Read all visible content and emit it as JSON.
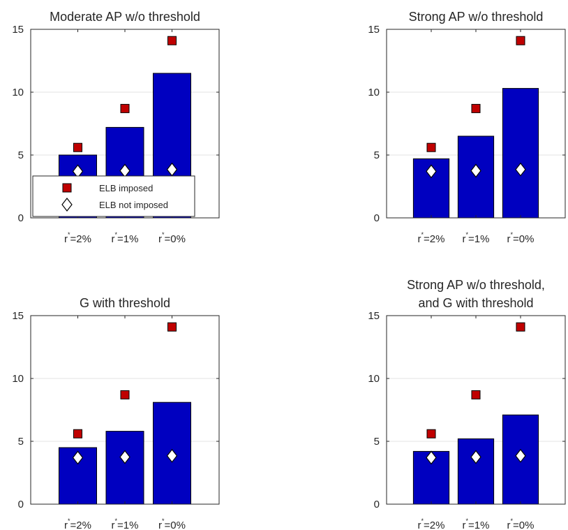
{
  "chart_data": [
    {
      "type": "bar",
      "title_lines": [
        "Moderate AP w/o threshold"
      ],
      "categories": [
        {
          "base": "r",
          "sup": "*",
          "rest": "=2%"
        },
        {
          "base": "r",
          "sup": "*",
          "rest": "=1%"
        },
        {
          "base": "r",
          "sup": "*",
          "rest": "=0%"
        }
      ],
      "values": [
        5.0,
        7.2,
        11.5
      ],
      "markers": [
        {
          "name": "ELB imposed",
          "shape": "square",
          "values": [
            5.6,
            8.7,
            14.1
          ]
        },
        {
          "name": "ELB not imposed",
          "shape": "diamond",
          "values": [
            3.7,
            3.75,
            3.85
          ]
        }
      ],
      "ylim": [
        0,
        15
      ],
      "yticks": [
        0,
        5,
        10,
        15
      ],
      "grid": true,
      "legend": "bottom"
    },
    {
      "type": "bar",
      "title_lines": [
        "Strong AP w/o threshold"
      ],
      "categories": [
        {
          "base": "r",
          "sup": "*",
          "rest": "=2%"
        },
        {
          "base": "r",
          "sup": "*",
          "rest": "=1%"
        },
        {
          "base": "r",
          "sup": "*",
          "rest": "=0%"
        }
      ],
      "values": [
        4.7,
        6.5,
        10.3
      ],
      "markers": [
        {
          "name": "ELB imposed",
          "shape": "square",
          "values": [
            5.6,
            8.7,
            14.1
          ]
        },
        {
          "name": "ELB not imposed",
          "shape": "diamond",
          "values": [
            3.7,
            3.75,
            3.85
          ]
        }
      ],
      "ylim": [
        0,
        15
      ],
      "yticks": [
        0,
        5,
        10,
        15
      ],
      "grid": true
    },
    {
      "type": "bar",
      "title_lines": [
        "G with threshold"
      ],
      "categories": [
        {
          "base": "r",
          "sup": "*",
          "rest": "=2%"
        },
        {
          "base": "r",
          "sup": "*",
          "rest": "=1%"
        },
        {
          "base": "r",
          "sup": "*",
          "rest": "=0%"
        }
      ],
      "values": [
        4.5,
        5.8,
        8.1
      ],
      "markers": [
        {
          "name": "ELB imposed",
          "shape": "square",
          "values": [
            5.6,
            8.7,
            14.1
          ]
        },
        {
          "name": "ELB not imposed",
          "shape": "diamond",
          "values": [
            3.7,
            3.75,
            3.85
          ]
        }
      ],
      "ylim": [
        0,
        15
      ],
      "yticks": [
        0,
        5,
        10,
        15
      ],
      "grid": true
    },
    {
      "type": "bar",
      "title_lines": [
        "Strong AP w/o threshold,",
        "and G with threshold"
      ],
      "categories": [
        {
          "base": "r",
          "sup": "*",
          "rest": "=2%"
        },
        {
          "base": "r",
          "sup": "*",
          "rest": "=1%"
        },
        {
          "base": "r",
          "sup": "*",
          "rest": "=0%"
        }
      ],
      "values": [
        4.2,
        5.2,
        7.1
      ],
      "markers": [
        {
          "name": "ELB imposed",
          "shape": "square",
          "values": [
            5.6,
            8.7,
            14.1
          ]
        },
        {
          "name": "ELB not imposed",
          "shape": "diamond",
          "values": [
            3.7,
            3.75,
            3.85
          ]
        }
      ],
      "ylim": [
        0,
        15
      ],
      "yticks": [
        0,
        5,
        10,
        15
      ],
      "grid": true
    }
  ],
  "colors": {
    "bar_fill": "#0000c0",
    "bar_edge": "#000000",
    "square_fill": "#c00000",
    "diamond_fill": "#ffffff",
    "grid": "#e3e3e3",
    "axis": "#262626"
  }
}
